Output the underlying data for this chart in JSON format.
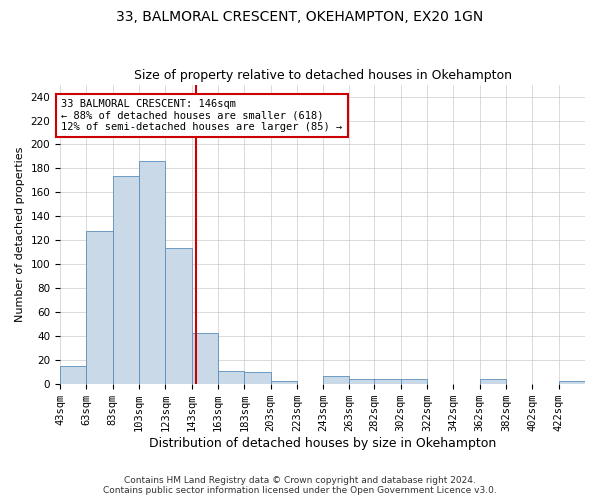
{
  "title": "33, BALMORAL CRESCENT, OKEHAMPTON, EX20 1GN",
  "subtitle": "Size of property relative to detached houses in Okehampton",
  "xlabel": "Distribution of detached houses by size in Okehampton",
  "ylabel": "Number of detached properties",
  "footer_line1": "Contains HM Land Registry data © Crown copyright and database right 2024.",
  "footer_line2": "Contains public sector information licensed under the Open Government Licence v3.0.",
  "annotation_line1": "33 BALMORAL CRESCENT: 146sqm",
  "annotation_line2": "← 88% of detached houses are smaller (618)",
  "annotation_line3": "12% of semi-detached houses are larger (85) →",
  "bar_edges": [
    43,
    63,
    83,
    103,
    123,
    143,
    163,
    183,
    203,
    223,
    243,
    263,
    282,
    302,
    322,
    342,
    362,
    382,
    402,
    422,
    442
  ],
  "bar_heights": [
    15,
    128,
    174,
    186,
    114,
    43,
    11,
    10,
    3,
    0,
    7,
    4,
    4,
    4,
    0,
    0,
    4,
    0,
    0,
    3
  ],
  "property_value": 146,
  "bar_color": "#c9d9e8",
  "bar_edge_color": "#5b8db8",
  "vline_color": "#cc0000",
  "annotation_box_color": "#cc0000",
  "background_color": "#ffffff",
  "grid_color": "#cccccc",
  "ylim": [
    0,
    250
  ],
  "yticks": [
    0,
    20,
    40,
    60,
    80,
    100,
    120,
    140,
    160,
    180,
    200,
    220,
    240
  ],
  "title_fontsize": 10,
  "subtitle_fontsize": 9,
  "ylabel_fontsize": 8,
  "xlabel_fontsize": 9,
  "tick_fontsize": 7.5,
  "annotation_fontsize": 7.5,
  "footer_fontsize": 6.5
}
